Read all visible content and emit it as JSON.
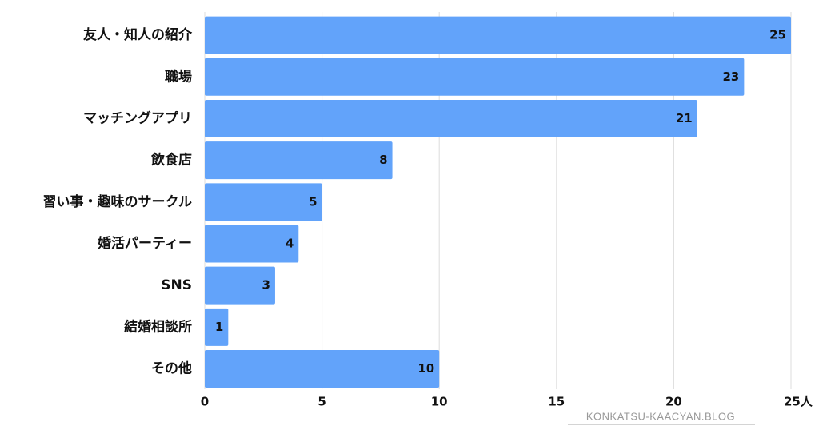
{
  "chart_data": {
    "type": "bar",
    "orientation": "horizontal",
    "categories": [
      "友人・知人の紹介",
      "職場",
      "マッチングアプリ",
      "飲食店",
      "習い事・趣味のサークル",
      "婚活パーティー",
      "SNS",
      "結婚相談所",
      "その他"
    ],
    "values": [
      25,
      23,
      21,
      8,
      5,
      4,
      3,
      1,
      10
    ],
    "color": "#62a3fa",
    "xlim": [
      0,
      25
    ],
    "xticks": [
      0,
      5,
      10,
      15,
      20,
      {
        "value": 25,
        "label": "25人"
      }
    ],
    "grid": true
  },
  "watermark": "KONKATSU-KAACYAN.BLOG"
}
